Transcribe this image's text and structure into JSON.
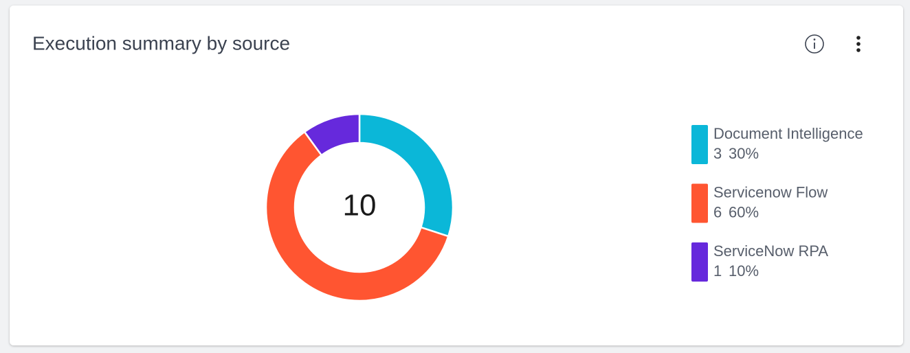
{
  "chart_data": {
    "type": "donut",
    "title": "Execution summary by source",
    "total": 10,
    "categories": [
      "Document Intelligence",
      "Servicenow Flow",
      "ServiceNow RPA"
    ],
    "values": [
      3,
      6,
      1
    ],
    "shares": [
      30,
      60,
      10
    ],
    "share_labels": [
      "30%",
      "60%",
      "10%"
    ],
    "colors": [
      "#0bb7d8",
      "#ff5531",
      "#6629dc"
    ],
    "legend": "right"
  }
}
